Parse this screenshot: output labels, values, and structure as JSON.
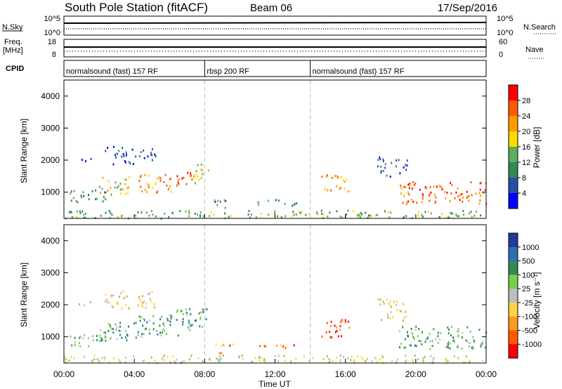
{
  "header": {
    "station": "South Pole Station (fitACF)",
    "beam": "Beam 06",
    "date": "17/Sep/2016"
  },
  "strips": {
    "nsky": {
      "label": "N.Sky",
      "ticks": [
        "10^5",
        "10^0"
      ],
      "right_label": "N.Search",
      "right_ticks": [
        "10^5",
        "10^0"
      ]
    },
    "freq": {
      "label_line1": "Freq.",
      "label_line2": "[MHz]",
      "ticks": [
        "18",
        "8"
      ],
      "right_label": "Nave",
      "right_ticks": [
        "60",
        "0"
      ]
    },
    "cpid": {
      "label": "CPID",
      "segments": [
        {
          "text": "normalsound (fast) 157 RF",
          "start_h": 0,
          "end_h": 8
        },
        {
          "text": "rbsp 200 RF",
          "start_h": 8,
          "end_h": 14
        },
        {
          "text": "normalsound (fast) 157 RF",
          "start_h": 14,
          "end_h": 24
        }
      ]
    }
  },
  "chart_data": [
    {
      "type": "heatmap",
      "panel": "power",
      "ylabel": "Slant Range [km]",
      "x_range_hours": [
        0,
        24
      ],
      "ylim": [
        180,
        4500
      ],
      "yticks": [
        1000,
        2000,
        3000,
        4000
      ],
      "colorbar": {
        "label": "Power [dB]",
        "ticks": [
          "28",
          "24",
          "20",
          "16",
          "12",
          "8",
          "4"
        ],
        "colors": [
          "#ff0000",
          "#ff5a00",
          "#ff9a00",
          "#ffd800",
          "#5aaf5a",
          "#2e8b57",
          "#2a4ea6",
          "#0000ff"
        ]
      },
      "regions": [
        {
          "t0": 0.8,
          "t1": 1.6,
          "r0": 1950,
          "r1": 2150,
          "level": 0.15
        },
        {
          "t0": 2.3,
          "t1": 5.2,
          "r0": 1900,
          "r1": 2450,
          "level": 0.1
        },
        {
          "t0": 0.2,
          "t1": 2.4,
          "r0": 700,
          "r1": 1100,
          "level": 0.35
        },
        {
          "t0": 2.0,
          "t1": 4.0,
          "r0": 900,
          "r1": 1500,
          "level": 0.55
        },
        {
          "t0": 4.0,
          "t1": 6.5,
          "r0": 1000,
          "r1": 1600,
          "level": 0.75
        },
        {
          "t0": 6.3,
          "t1": 7.4,
          "r0": 1200,
          "r1": 1650,
          "level": 0.9
        },
        {
          "t0": 7.3,
          "t1": 8.3,
          "r0": 1300,
          "r1": 1900,
          "level": 0.6
        },
        {
          "t0": 8.4,
          "t1": 9.6,
          "r0": 500,
          "r1": 800,
          "level": 0.35
        },
        {
          "t0": 11.0,
          "t1": 13.2,
          "r0": 600,
          "r1": 800,
          "level": 0.3
        },
        {
          "t0": 14.6,
          "t1": 16.2,
          "r0": 1000,
          "r1": 1600,
          "level": 0.7
        },
        {
          "t0": 17.8,
          "t1": 19.5,
          "r0": 1500,
          "r1": 2200,
          "level": 0.12
        },
        {
          "t0": 19.0,
          "t1": 24.0,
          "r0": 650,
          "r1": 1350,
          "level": 0.85
        },
        {
          "t0": 0.0,
          "t1": 24.0,
          "r0": 200,
          "r1": 450,
          "level": 0.4
        }
      ]
    },
    {
      "type": "heatmap",
      "panel": "velocity",
      "ylabel": "Slant Range [km]",
      "xlabel": "Time UT",
      "x_range_hours": [
        0,
        24
      ],
      "xticks": [
        "00:00",
        "04:00",
        "08:00",
        "12:00",
        "16:00",
        "20:00",
        "00:00"
      ],
      "ylim": [
        180,
        4500
      ],
      "yticks": [
        1000,
        2000,
        3000,
        4000
      ],
      "colorbar": {
        "label": "Velocity [m s⁻¹]",
        "ticks": [
          "1000",
          "500",
          "100",
          "25",
          "-25",
          "-100",
          "-500",
          "-1000"
        ],
        "colors": [
          "#1f3a9a",
          "#2f6fb0",
          "#2e8b57",
          "#7ccd4a",
          "#bdbdbd",
          "#ffd24a",
          "#ff9a1a",
          "#ff5a00",
          "#ff0000"
        ]
      },
      "regions": [
        {
          "t0": 0.8,
          "t1": 1.6,
          "r0": 1950,
          "r1": 2150,
          "level": 0.45
        },
        {
          "t0": 2.3,
          "t1": 5.2,
          "r0": 1900,
          "r1": 2450,
          "level": 0.45
        },
        {
          "t0": 0.2,
          "t1": 2.4,
          "r0": 700,
          "r1": 1100,
          "level": 0.6
        },
        {
          "t0": 2.0,
          "t1": 4.0,
          "r0": 900,
          "r1": 1500,
          "level": 0.7
        },
        {
          "t0": 4.0,
          "t1": 6.5,
          "r0": 1000,
          "r1": 1700,
          "level": 0.72
        },
        {
          "t0": 6.3,
          "t1": 8.3,
          "r0": 1200,
          "r1": 1900,
          "level": 0.72
        },
        {
          "t0": 8.4,
          "t1": 9.6,
          "r0": 500,
          "r1": 800,
          "level": 0.2
        },
        {
          "t0": 11.0,
          "t1": 13.2,
          "r0": 600,
          "r1": 800,
          "level": 0.2
        },
        {
          "t0": 14.6,
          "t1": 16.2,
          "r0": 1000,
          "r1": 1600,
          "level": 0.1
        },
        {
          "t0": 17.8,
          "t1": 19.5,
          "r0": 1500,
          "r1": 2200,
          "level": 0.45
        },
        {
          "t0": 19.0,
          "t1": 24.0,
          "r0": 650,
          "r1": 1350,
          "level": 0.68
        },
        {
          "t0": 0.0,
          "t1": 24.0,
          "r0": 200,
          "r1": 450,
          "level": 0.5
        }
      ]
    }
  ]
}
